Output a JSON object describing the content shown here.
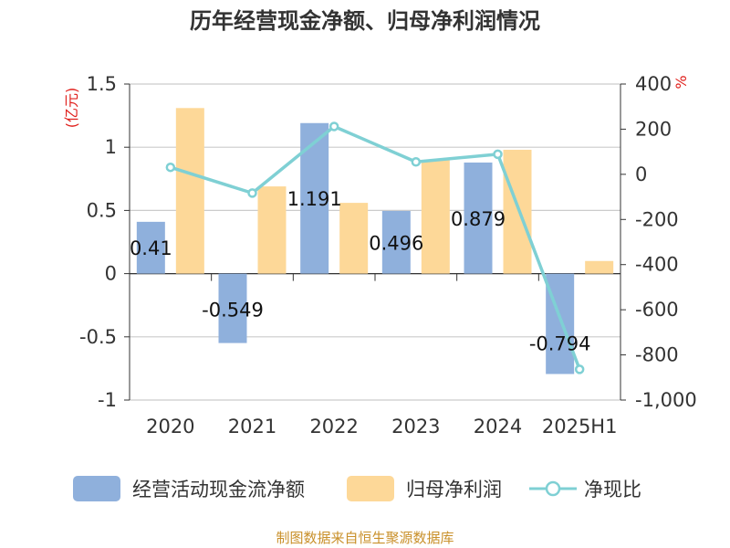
{
  "chart_data": {
    "type": "bar",
    "title": "历年经营现金净额、归母净利润情况",
    "categories": [
      "2020",
      "2021",
      "2022",
      "2023",
      "2024",
      "2025H1"
    ],
    "series": [
      {
        "name": "经营活动现金流净额",
        "kind": "bar",
        "axis": "left",
        "color": "#8fb0dc",
        "values": [
          0.41,
          -0.549,
          1.191,
          0.496,
          0.879,
          -0.794
        ],
        "labels": [
          "0.41",
          "-0.549",
          "1.191",
          "0.496",
          "0.879",
          "-0.794"
        ]
      },
      {
        "name": "归母净利润",
        "kind": "bar",
        "axis": "left",
        "color": "#fdd898",
        "values": [
          1.31,
          0.69,
          0.56,
          0.9,
          0.98,
          0.1
        ]
      },
      {
        "name": "净现比",
        "kind": "line",
        "axis": "right",
        "color": "#7fd0d4",
        "values": [
          31,
          -83,
          212,
          55,
          89,
          -864
        ]
      }
    ],
    "y_left": {
      "label": "(亿元)",
      "ylim": [
        -1,
        1.5
      ],
      "ticks": [
        1.5,
        1,
        0.5,
        0,
        -0.5,
        -1
      ],
      "tick_labels": [
        "1.5",
        "1",
        "0.5",
        "0",
        "-0.5",
        "-1"
      ]
    },
    "y_right": {
      "label": "%",
      "ylim": [
        -1000,
        400
      ],
      "ticks": [
        400,
        200,
        0,
        -200,
        -400,
        -600,
        -800,
        -1000
      ],
      "tick_labels": [
        "400",
        "200",
        "0",
        "-200",
        "-400",
        "-600",
        "-800",
        "-1,000"
      ]
    },
    "grid": true,
    "legend_position": "bottom",
    "source": "制图数据来自恒生聚源数据库"
  }
}
